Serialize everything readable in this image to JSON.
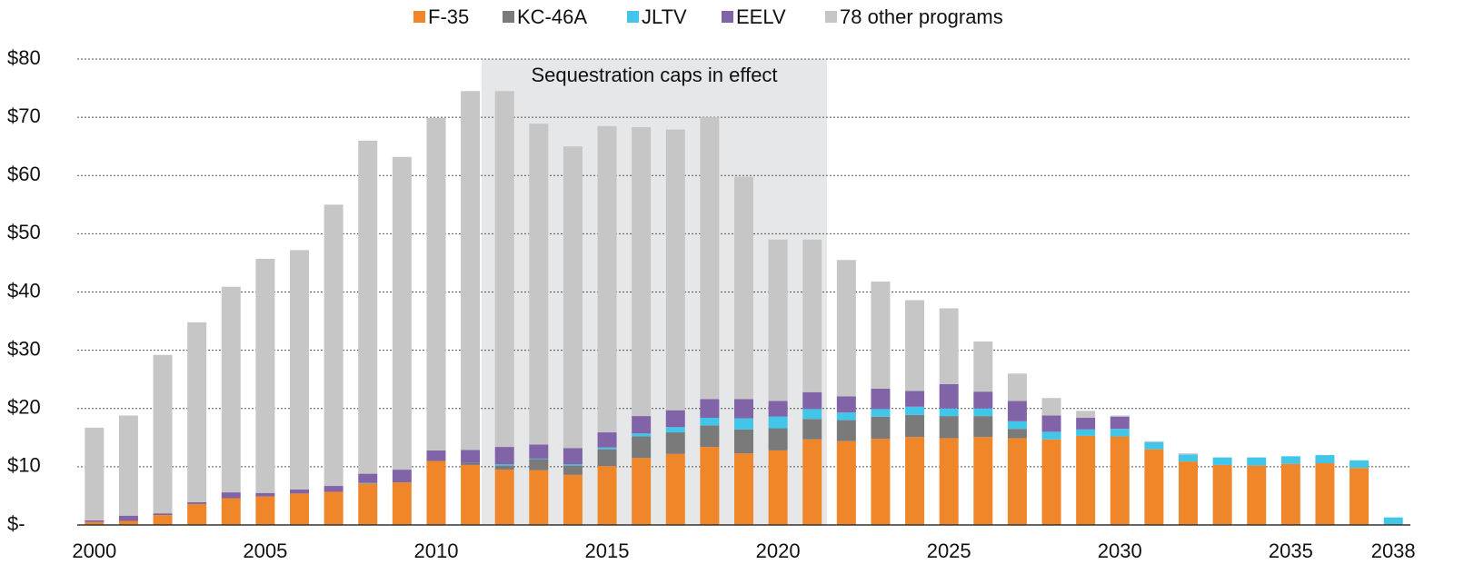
{
  "chart_data": {
    "type": "stacked_bar",
    "annotation": "Sequestration caps in effect",
    "categories": [
      "2000",
      null,
      null,
      null,
      null,
      "2005",
      null,
      null,
      null,
      null,
      "2010",
      null,
      null,
      null,
      null,
      "2015",
      null,
      null,
      null,
      null,
      "2020",
      null,
      null,
      null,
      null,
      "2025",
      null,
      null,
      null,
      null,
      "2030",
      null,
      null,
      null,
      null,
      "2035",
      null,
      null,
      "2038"
    ],
    "series": [
      {
        "name": "F-35",
        "color": "#f0862a",
        "values": [
          0.5,
          0.7,
          1.7,
          3.6,
          4.6,
          4.9,
          5.4,
          5.7,
          7.1,
          7.3,
          11.0,
          10.3,
          9.5,
          9.4,
          8.6,
          10.1,
          11.5,
          12.2,
          13.4,
          12.3,
          12.8,
          14.7,
          14.4,
          14.8,
          15.1,
          14.9,
          15.1,
          14.9,
          14.7,
          15.3,
          15.2,
          13.0,
          10.9,
          10.3,
          10.2,
          10.5,
          10.6,
          9.8,
          0
        ]
      },
      {
        "name": "KC-46A",
        "color": "#7a7a7a",
        "values": [
          0,
          0,
          0,
          0,
          0,
          0,
          0,
          0,
          0,
          0,
          0,
          0.4,
          0.7,
          1.9,
          1.6,
          2.9,
          3.7,
          3.7,
          3.7,
          4.1,
          3.8,
          3.5,
          3.6,
          3.8,
          3.8,
          3.8,
          3.6,
          1.6,
          0,
          0,
          0,
          0,
          0,
          0,
          0,
          0,
          0,
          0,
          0
        ]
      },
      {
        "name": "JLTV",
        "color": "#41c6ea",
        "values": [
          0,
          0,
          0,
          0,
          0,
          0,
          0,
          0,
          0.1,
          0,
          0,
          0,
          0.2,
          0.1,
          0.2,
          0.3,
          0.5,
          0.9,
          1.3,
          1.9,
          2.0,
          1.7,
          1.3,
          1.3,
          1.4,
          1.3,
          1.3,
          1.3,
          1.3,
          1.1,
          1.3,
          1.2,
          1.2,
          1.3,
          1.4,
          1.3,
          1.4,
          1.3,
          1.3
        ]
      },
      {
        "name": "EELV",
        "color": "#8164a8",
        "values": [
          0.3,
          0.9,
          0.3,
          0.3,
          1.0,
          0.6,
          0.7,
          1.0,
          1.6,
          2.2,
          1.8,
          2.2,
          3.0,
          2.4,
          2.8,
          2.6,
          3.0,
          2.9,
          3.2,
          3.3,
          2.7,
          2.9,
          2.8,
          3.5,
          2.7,
          4.2,
          2.9,
          3.5,
          2.8,
          2.0,
          2.1,
          0,
          0,
          0,
          0,
          0,
          0,
          0,
          0
        ]
      },
      {
        "name": "78 other programs",
        "color": "#c6c6c6",
        "values": [
          15.9,
          17.2,
          27.2,
          30.9,
          35.3,
          40.2,
          41.1,
          48.3,
          57.2,
          53.7,
          57.1,
          61.6,
          61.1,
          55.1,
          51.8,
          52.6,
          49.6,
          48.2,
          48.4,
          38.2,
          27.7,
          26.2,
          23.4,
          18.4,
          15.6,
          13.0,
          8.6,
          4.7,
          3.0,
          1.2,
          0.2,
          0.2,
          0.2,
          0,
          0,
          0,
          0,
          0,
          0
        ]
      }
    ],
    "ylim": [
      0,
      80
    ],
    "yticks": [
      {
        "value": 0,
        "label": "$-"
      },
      {
        "value": 10,
        "label": "$10"
      },
      {
        "value": 20,
        "label": "$20"
      },
      {
        "value": 30,
        "label": "$30"
      },
      {
        "value": 40,
        "label": "$40"
      },
      {
        "value": 50,
        "label": "$50"
      },
      {
        "value": 60,
        "label": "$60"
      },
      {
        "value": 70,
        "label": "$70"
      },
      {
        "value": 80,
        "label": "$80"
      }
    ],
    "grid": true,
    "legend": "top"
  }
}
